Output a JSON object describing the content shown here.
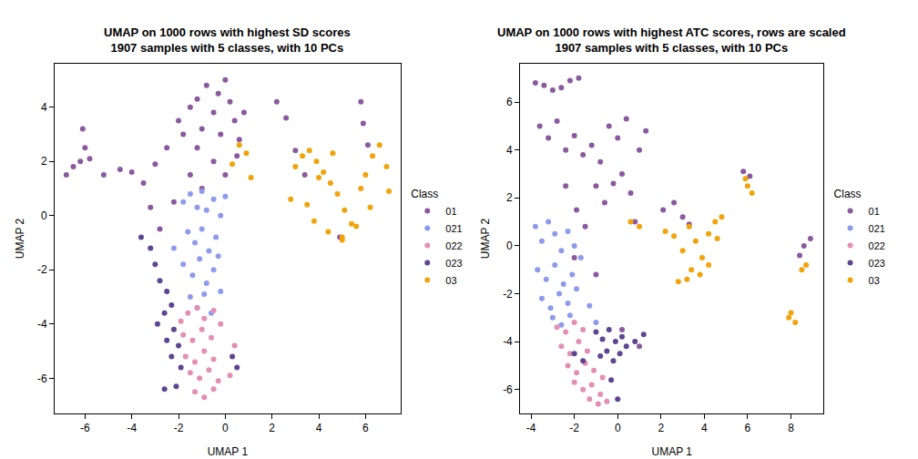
{
  "chart_data": [
    {
      "type": "scatter",
      "title": "UMAP on 1000 rows with highest SD scores\n1907 samples with 5 classes, with 10 PCs",
      "x_label": "UMAP 1",
      "y_label": "UMAP 2",
      "legend_title": "Class",
      "legend": "right",
      "grid": false,
      "marker": "circle",
      "xlim": [
        -7.3,
        7.5
      ],
      "ylim": [
        -7.3,
        5.6
      ],
      "xticks": [
        -6,
        -4,
        -2,
        0,
        2,
        4,
        6
      ],
      "yticks": [
        -6,
        -4,
        -2,
        0,
        2,
        4
      ],
      "series": [
        {
          "name": "01",
          "color": "#8B5A9E",
          "x": [
            -6.8,
            -6.5,
            -6.2,
            -6.0,
            -6.1,
            -5.8,
            -5.2,
            -4.5,
            -4.0,
            -3.5,
            -3.0,
            -2.5,
            -2.0,
            -1.8,
            -1.5,
            -1.2,
            -1.0,
            -0.8,
            -0.5,
            -0.3,
            0.0,
            0.2,
            0.4,
            0.6,
            0.8,
            -1.5,
            -1.0,
            -0.5,
            0.0,
            0.5,
            -2.2,
            -1.2,
            -0.2,
            2.2,
            2.6,
            3.0,
            3.4,
            5.8,
            5.9,
            6.1,
            4.9,
            -3.2,
            -2.8
          ],
          "y": [
            1.5,
            1.8,
            2.0,
            2.5,
            3.2,
            2.1,
            1.5,
            1.7,
            1.6,
            1.2,
            1.9,
            2.5,
            3.5,
            3.0,
            4.0,
            4.3,
            3.2,
            4.8,
            3.8,
            4.5,
            5.0,
            4.2,
            3.5,
            2.8,
            3.8,
            1.5,
            1.0,
            2.0,
            1.5,
            2.2,
            0.5,
            2.5,
            3.0,
            4.2,
            3.6,
            2.4,
            1.5,
            4.2,
            3.4,
            2.6,
            -0.8,
            0.3,
            -0.5
          ]
        },
        {
          "name": "021",
          "color": "#8E9BEA",
          "x": [
            -1.8,
            -1.5,
            -1.2,
            -1.0,
            -0.8,
            -0.5,
            -0.2,
            0.0,
            -1.6,
            -1.3,
            -1.0,
            -0.7,
            -0.4,
            -1.8,
            -1.4,
            -1.1,
            -0.8,
            -0.5,
            -0.2,
            -1.5,
            -1.2,
            -0.9,
            -0.6,
            -2.2,
            -0.3
          ],
          "y": [
            0.5,
            0.8,
            0.3,
            0.9,
            0.2,
            0.6,
            0.0,
            0.7,
            -0.6,
            -1.0,
            -0.5,
            -1.3,
            -0.8,
            -1.8,
            -2.2,
            -1.6,
            -2.5,
            -2.0,
            -2.8,
            -3.0,
            -3.4,
            -2.9,
            -3.6,
            -1.2,
            -1.5
          ]
        },
        {
          "name": "022",
          "color": "#E38FB3",
          "x": [
            -1.6,
            -1.2,
            -0.9,
            -0.5,
            -1.8,
            -1.4,
            -1.0,
            -0.6,
            -0.2,
            -1.7,
            -1.3,
            -0.9,
            -0.5,
            -1.5,
            -1.1,
            -0.7,
            -0.3,
            -1.3,
            -0.9,
            -0.5,
            0.2,
            0.4,
            -1.9
          ],
          "y": [
            -3.6,
            -3.4,
            -3.8,
            -3.5,
            -4.4,
            -4.6,
            -4.2,
            -4.5,
            -4.0,
            -5.2,
            -5.4,
            -5.0,
            -5.3,
            -5.8,
            -6.0,
            -5.7,
            -6.1,
            -6.5,
            -6.7,
            -6.4,
            -5.9,
            -4.8,
            -3.9
          ]
        },
        {
          "name": "023",
          "color": "#5E4591",
          "x": [
            -3.6,
            -3.2,
            -3.0,
            -2.8,
            -2.5,
            -2.3,
            -2.6,
            -2.9,
            -2.2,
            -2.5,
            -2.0,
            -2.3,
            -1.9,
            -2.1,
            0.3,
            0.5,
            -2.6
          ],
          "y": [
            -0.8,
            -1.2,
            -1.8,
            -2.4,
            -2.8,
            -3.3,
            -3.6,
            -4.0,
            -4.2,
            -4.6,
            -4.8,
            -5.2,
            -5.6,
            -6.3,
            -5.2,
            -5.6,
            -6.4
          ]
        },
        {
          "name": "03",
          "color": "#F0A30A",
          "x": [
            3.0,
            3.3,
            3.6,
            3.9,
            4.2,
            4.5,
            4.8,
            5.1,
            5.4,
            3.5,
            3.8,
            4.4,
            5.0,
            5.6,
            6.0,
            6.3,
            6.6,
            6.9,
            7.0,
            6.2,
            5.8,
            4.0,
            4.6,
            0.6,
            0.9,
            1.1,
            0.3,
            2.8,
            5.0
          ],
          "y": [
            1.8,
            2.2,
            2.4,
            2.0,
            1.6,
            1.2,
            0.8,
            0.2,
            -0.3,
            0.4,
            -0.2,
            -0.6,
            -0.8,
            -0.4,
            1.5,
            2.2,
            2.6,
            1.8,
            0.9,
            0.3,
            1.0,
            1.4,
            2.3,
            2.6,
            2.3,
            1.4,
            1.9,
            0.6,
            -0.9
          ]
        }
      ]
    },
    {
      "type": "scatter",
      "title": "UMAP on 1000 rows with highest ATC scores, rows are scaled\n1907 samples with 5 classes, with 10 PCs",
      "x_label": "UMAP 1",
      "y_label": "UMAP 2",
      "legend_title": "Class",
      "legend": "right",
      "grid": false,
      "marker": "circle",
      "xlim": [
        -4.5,
        9.5
      ],
      "ylim": [
        -7.0,
        7.6
      ],
      "xticks": [
        -4,
        -2,
        0,
        2,
        4,
        6,
        8
      ],
      "yticks": [
        -6,
        -4,
        -2,
        0,
        2,
        4,
        6
      ],
      "series": [
        {
          "name": "01",
          "color": "#8B5A9E",
          "x": [
            -3.8,
            -3.4,
            -3.0,
            -2.6,
            -2.2,
            -1.8,
            -3.6,
            -3.2,
            -2.8,
            -2.4,
            -2.0,
            -1.6,
            -1.2,
            -0.8,
            -0.4,
            0.0,
            0.4,
            -1.0,
            -0.6,
            -0.2,
            0.2,
            0.6,
            1.0,
            1.3,
            -2.4,
            -1.9,
            -1.5,
            0.8,
            2.1,
            2.6,
            3.0,
            3.3,
            5.8,
            6.1,
            8.6,
            8.9,
            8.4,
            -1.0,
            0.2,
            1.0,
            -2.0
          ],
          "y": [
            6.8,
            6.7,
            6.5,
            6.6,
            6.9,
            7.0,
            5.0,
            4.5,
            5.2,
            4.0,
            4.6,
            3.8,
            4.2,
            3.5,
            5.0,
            4.5,
            5.3,
            2.5,
            1.8,
            2.6,
            3.0,
            2.2,
            4.0,
            4.8,
            2.5,
            1.5,
            0.8,
            1.0,
            1.5,
            1.8,
            1.2,
            0.9,
            3.1,
            2.9,
            0.0,
            0.3,
            -0.4,
            -1.2,
            -3.5,
            -4.2,
            -0.5
          ]
        },
        {
          "name": "021",
          "color": "#8E9BEA",
          "x": [
            -3.8,
            -3.5,
            -3.2,
            -2.9,
            -2.6,
            -2.3,
            -3.7,
            -3.3,
            -2.9,
            -2.5,
            -2.1,
            -1.7,
            -3.5,
            -3.1,
            -2.7,
            -2.3,
            -1.9,
            -3.0,
            -2.6,
            -2.2,
            -1.3,
            -1.0,
            -2.0
          ],
          "y": [
            0.8,
            0.2,
            1.0,
            0.5,
            -0.2,
            0.6,
            -1.0,
            -1.4,
            -0.8,
            -1.6,
            -1.2,
            -0.5,
            -2.2,
            -2.6,
            -2.0,
            -2.4,
            -1.8,
            -3.0,
            -3.3,
            -2.9,
            -2.5,
            -3.2,
            0.0
          ]
        },
        {
          "name": "022",
          "color": "#E38FB3",
          "x": [
            -2.8,
            -2.4,
            -2.0,
            -1.6,
            -2.6,
            -2.2,
            -1.8,
            -1.4,
            -2.3,
            -1.9,
            -1.5,
            -1.1,
            -2.0,
            -1.6,
            -1.2,
            -0.8,
            -1.3,
            -0.9,
            -0.5,
            -0.7
          ],
          "y": [
            -3.4,
            -3.6,
            -3.2,
            -3.5,
            -4.2,
            -4.5,
            -4.0,
            -4.4,
            -5.0,
            -5.3,
            -4.9,
            -5.2,
            -5.7,
            -6.0,
            -5.8,
            -6.2,
            -6.4,
            -6.6,
            -6.5,
            -5.5
          ]
        },
        {
          "name": "023",
          "color": "#5E4591",
          "x": [
            -1.0,
            -0.7,
            -0.4,
            -0.1,
            0.2,
            -0.8,
            -0.5,
            -0.2,
            0.1,
            0.4,
            -0.3,
            0.0,
            -2.0,
            -1.6,
            0.8,
            1.2
          ],
          "y": [
            -3.6,
            -3.9,
            -3.5,
            -4.0,
            -3.8,
            -4.6,
            -4.4,
            -4.8,
            -4.5,
            -4.2,
            -5.6,
            -6.4,
            -4.5,
            -4.8,
            -4.0,
            -3.7
          ]
        },
        {
          "name": "03",
          "color": "#F0A30A",
          "x": [
            2.2,
            2.6,
            3.0,
            3.3,
            3.6,
            3.9,
            4.2,
            4.5,
            4.8,
            3.4,
            3.8,
            4.2,
            4.6,
            3.2,
            0.6,
            1.0,
            5.9,
            6.2,
            6.0,
            8.0,
            8.2,
            7.9,
            8.5,
            8.7,
            2.8
          ],
          "y": [
            0.6,
            0.4,
            -0.2,
            0.8,
            0.2,
            -0.5,
            0.5,
            1.0,
            1.2,
            -1.0,
            -1.2,
            -0.8,
            0.3,
            -1.4,
            1.0,
            0.8,
            2.8,
            2.2,
            2.5,
            -2.8,
            -3.2,
            -3.0,
            -1.0,
            -0.8,
            -1.5
          ]
        }
      ]
    }
  ]
}
